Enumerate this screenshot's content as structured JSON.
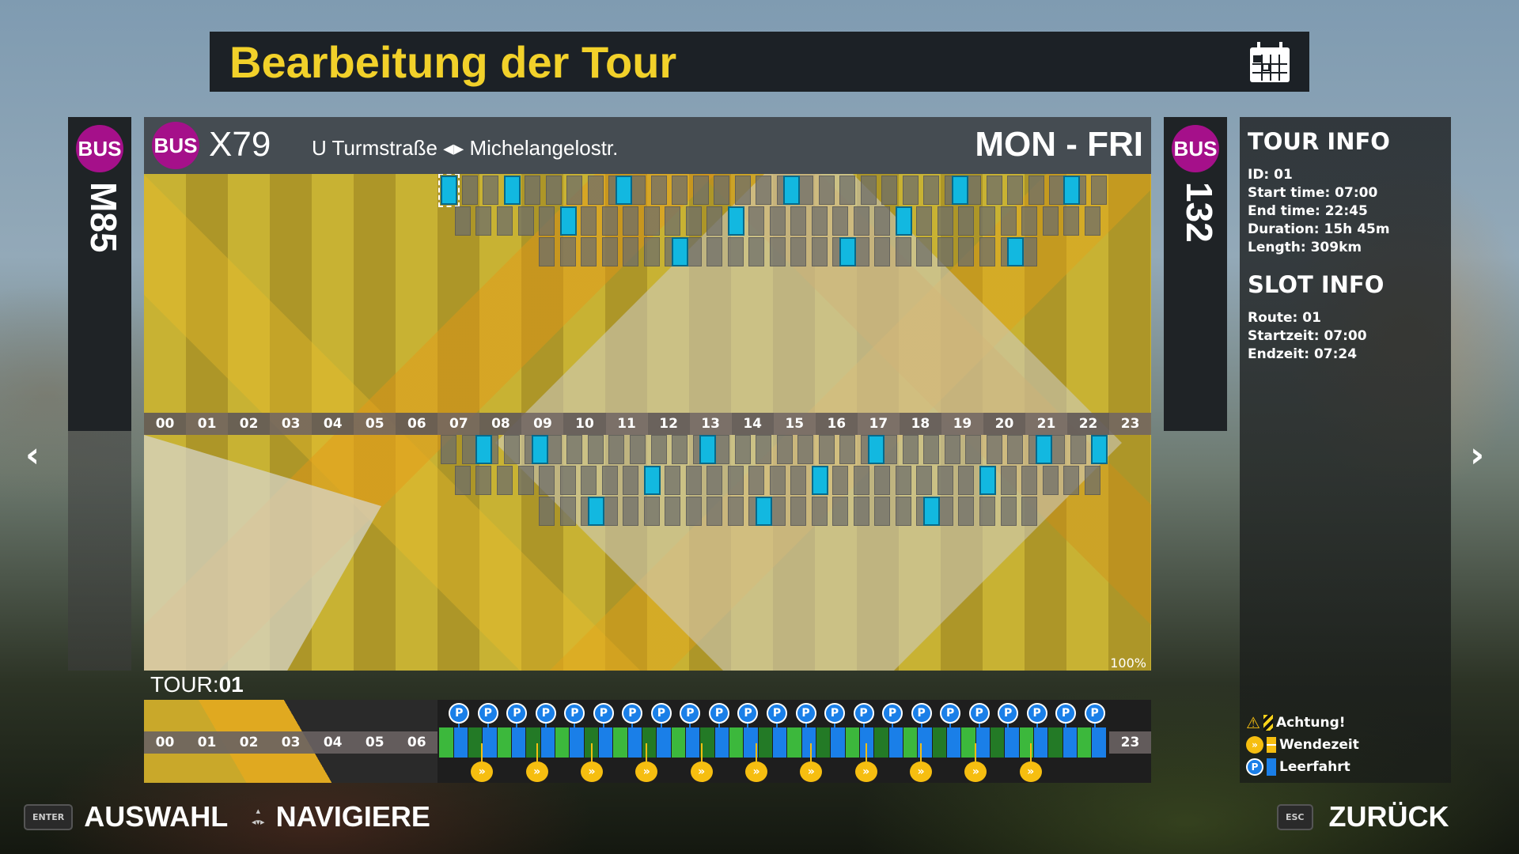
{
  "title": "Bearbeitung der Tour",
  "left_line": {
    "badge": "BUS",
    "number": "M85"
  },
  "right_line": {
    "badge": "BUS",
    "number": "132"
  },
  "main": {
    "badge": "BUS",
    "line": "X79",
    "route_from": "U Turmstraße",
    "route_sep": "◂▸",
    "route_to": "Michelangelostr.",
    "days": "MON - FRI",
    "zoom": "100%"
  },
  "hours": [
    "00",
    "01",
    "02",
    "03",
    "04",
    "05",
    "06",
    "07",
    "08",
    "09",
    "10",
    "11",
    "12",
    "13",
    "14",
    "15",
    "16",
    "17",
    "18",
    "19",
    "20",
    "21",
    "22",
    "23"
  ],
  "schedule": {
    "slot_minutes": 30,
    "upper": [
      {
        "start": "07:00",
        "end": "22:45",
        "leerfahrt": [
          "07:00",
          "08:30",
          "11:10",
          "15:10",
          "19:10",
          "21:50"
        ],
        "selected": "07:00"
      },
      {
        "start": "07:20",
        "end": "22:45",
        "leerfahrt": [
          "09:50",
          "13:50",
          "17:50"
        ]
      },
      {
        "start": "09:20",
        "end": "21:15",
        "leerfahrt": [
          "12:30",
          "16:30",
          "20:30"
        ]
      }
    ],
    "lower": [
      {
        "start": "07:00",
        "end": "22:45",
        "leerfahrt": [
          "07:50",
          "09:10",
          "13:10",
          "17:10",
          "21:10",
          "22:30"
        ]
      },
      {
        "start": "07:20",
        "end": "22:45",
        "leerfahrt": [
          "11:50",
          "15:50",
          "19:50"
        ]
      },
      {
        "start": "09:20",
        "end": "21:15",
        "leerfahrt": [
          "10:30",
          "14:30",
          "18:30"
        ]
      }
    ]
  },
  "tour": {
    "label": "TOUR:",
    "id": "01",
    "start": "07:00",
    "end": "22:45",
    "leerfahrt_markers": 23,
    "wendezeit_markers": 11,
    "hours_before": [
      "00",
      "01",
      "02",
      "03",
      "04",
      "05",
      "06"
    ],
    "hour_after": "23"
  },
  "tour_info": {
    "heading": "TOUR INFO",
    "id": "ID: 01",
    "start": "Start time: 07:00",
    "end": "End time: 22:45",
    "duration": "Duration: 15h 45m",
    "length": "Length: 309km"
  },
  "slot_info": {
    "heading": "SLOT INFO",
    "route": "Route: 01",
    "start": "Startzeit: 07:00",
    "end": "Endzeit: 07:24"
  },
  "legend": {
    "warning": "Achtung!",
    "turnaround": "Wendezeit",
    "empty_run": "Leerfahrt"
  },
  "footer": {
    "enter_key": "ENTER",
    "select": "AUSWAHL",
    "navigate": "NAVIGIERE",
    "esc_key": "ESC",
    "back": "ZURÜCK"
  },
  "colors": {
    "title": "#f2d12a",
    "bus": "#a5108a",
    "leerfahrt": "#12b8e0",
    "wendezeit": "#f6be10",
    "parking": "#1a7fe8",
    "route_green": "#3cb83c"
  }
}
